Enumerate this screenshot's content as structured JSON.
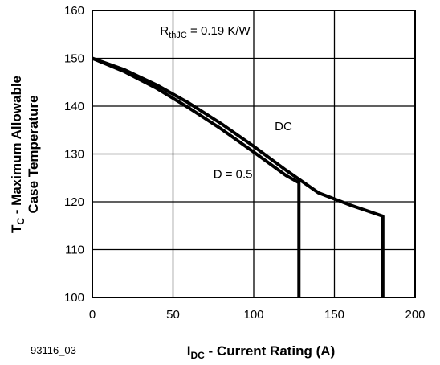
{
  "figure_id": "93116_03",
  "colors": {
    "background": "#ffffff",
    "ink": "#000000"
  },
  "chart_data": {
    "type": "line",
    "xlabel": {
      "main": "I",
      "sub": "DC",
      "rest": " - Current Rating (A)"
    },
    "ylabel": {
      "line1": {
        "main": "T",
        "sub": "C",
        "rest": " - Maximum Allowable"
      },
      "line2": "Case Temperature"
    },
    "xlim": [
      0,
      200
    ],
    "ylim": [
      100,
      160
    ],
    "xticks": [
      0,
      50,
      100,
      150,
      200
    ],
    "yticks": [
      100,
      110,
      120,
      130,
      140,
      150,
      160
    ],
    "xtick_labels": [
      "0",
      "50",
      "100",
      "150",
      "200"
    ],
    "ytick_labels": [
      "100",
      "110",
      "120",
      "130",
      "140",
      "150",
      "160"
    ],
    "grid": true,
    "legend": "none",
    "annotations": {
      "rth": {
        "main": "R",
        "sub": "thJC",
        "rest": " = 0.19 K/W",
        "x": 42,
        "y": 155
      },
      "dc": {
        "text": "DC",
        "x": 113,
        "y": 135
      },
      "d05": {
        "text": "D = 0.5",
        "x": 75,
        "y": 125
      }
    },
    "series": [
      {
        "name": "DC",
        "x": [
          0,
          20,
          40,
          60,
          80,
          100,
          120,
          140,
          160,
          180,
          180
        ],
        "y": [
          150,
          147.6,
          144.4,
          140.6,
          136.3,
          131.6,
          126.6,
          121.9,
          119.3,
          117,
          100
        ]
      },
      {
        "name": "D = 0.5",
        "x": [
          0,
          20,
          40,
          60,
          80,
          100,
          120,
          128,
          128
        ],
        "y": [
          150,
          147.2,
          143.7,
          139.6,
          135.2,
          130.4,
          125.5,
          124,
          100
        ]
      }
    ]
  }
}
